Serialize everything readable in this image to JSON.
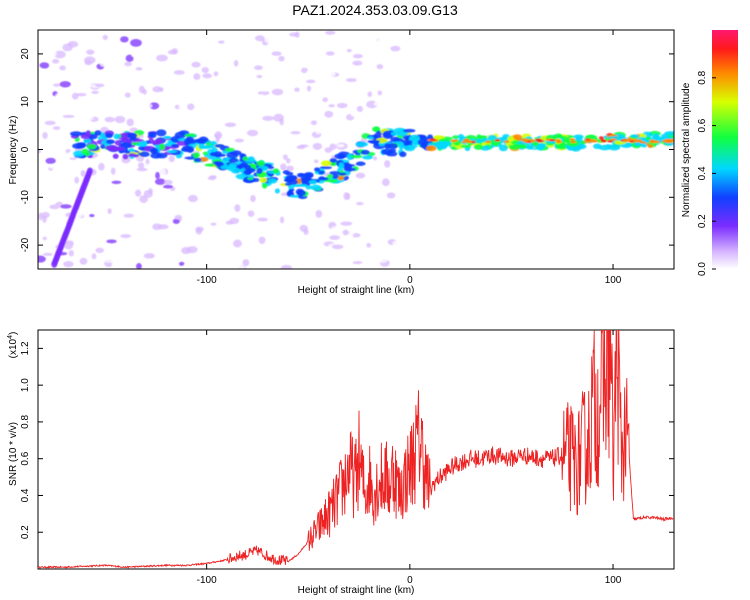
{
  "title": "PAZ1.2024.353.03.09.G13",
  "spectrogram": {
    "xlabel": "Height of straight line (km)",
    "ylabel": "Frequency (Hz)",
    "xlim": [
      -183,
      130
    ],
    "ylim": [
      -25,
      25
    ],
    "xticks": [
      -100,
      0,
      100
    ],
    "yticks": [
      -20,
      -10,
      0,
      10,
      20
    ],
    "colorbar": {
      "label": "Normalized spectral amplitude",
      "range": [
        0,
        1
      ],
      "ticks": [
        "0.0",
        "0.2",
        "0.4",
        "0.6",
        "0.8"
      ]
    }
  },
  "chart_data": {
    "type": "line",
    "title": "",
    "xlabel": "Height of straight line (km)",
    "ylabel": "SNR (10 * v/v)",
    "y_exponent_label": "(x10",
    "y_exponent_power": "4",
    "xlim": [
      -183,
      130
    ],
    "ylim": [
      0,
      1.3
    ],
    "xticks": [
      -100,
      0,
      100
    ],
    "yticks": [
      0.2,
      0.4,
      0.6,
      0.8,
      1.0,
      1.2
    ],
    "ytick_labels": [
      "0.2",
      "0.4",
      "0.6",
      "0.8",
      "1.0",
      "1.2"
    ],
    "color": "#ee2222",
    "series": [
      {
        "x": [
          -183,
          -170,
          -160,
          -150,
          -140,
          -130,
          -120,
          -110,
          -100,
          -90,
          -85,
          -80,
          -75,
          -70,
          -65,
          -60,
          -55,
          -50,
          -45,
          -40,
          -37,
          -35,
          -33,
          -30,
          -27,
          -25,
          -22,
          -20,
          -18,
          -15,
          -12,
          -10,
          -8,
          -5,
          -3,
          0,
          3,
          5,
          8,
          10,
          12,
          15,
          20,
          25,
          30,
          35,
          40,
          45,
          50,
          55,
          60,
          65,
          70,
          75,
          80,
          82,
          85,
          88,
          90,
          92,
          95,
          97,
          99,
          100,
          102,
          104,
          106,
          108,
          110,
          115,
          120,
          125,
          130
        ],
        "y": [
          0.01,
          0.01,
          0.015,
          0.02,
          0.01,
          0.015,
          0.02,
          0.02,
          0.03,
          0.05,
          0.07,
          0.08,
          0.1,
          0.07,
          0.05,
          0.04,
          0.08,
          0.15,
          0.22,
          0.3,
          0.35,
          0.4,
          0.45,
          0.55,
          0.48,
          0.6,
          0.4,
          0.5,
          0.42,
          0.48,
          0.5,
          0.45,
          0.55,
          0.4,
          0.48,
          0.55,
          0.65,
          0.72,
          0.5,
          0.42,
          0.47,
          0.5,
          0.55,
          0.58,
          0.6,
          0.6,
          0.62,
          0.61,
          0.6,
          0.62,
          0.61,
          0.6,
          0.6,
          0.62,
          0.6,
          0.55,
          0.65,
          0.7,
          0.9,
          0.85,
          1.0,
          1.1,
          1.2,
          0.55,
          1.25,
          0.62,
          0.75,
          0.6,
          0.27,
          0.28,
          0.28,
          0.27,
          0.28
        ]
      }
    ]
  }
}
